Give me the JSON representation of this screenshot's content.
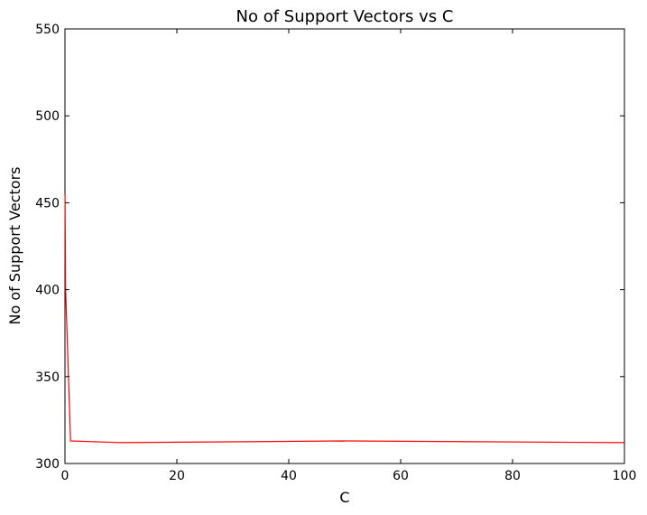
{
  "chart_data": {
    "type": "line",
    "title": "No of Support Vectors vs C",
    "xlabel": "C",
    "ylabel": "No of Support Vectors",
    "xlim": [
      0,
      100
    ],
    "ylim": [
      300,
      550
    ],
    "xticks": [
      0,
      20,
      40,
      60,
      80,
      100
    ],
    "yticks": [
      300,
      350,
      400,
      450,
      500,
      550
    ],
    "grid": false,
    "series": [
      {
        "color": "#ff0000",
        "x": [
          0.01,
          0.1,
          1,
          10,
          50,
          100
        ],
        "y": [
          455,
          402,
          313,
          312,
          313,
          312
        ]
      }
    ]
  }
}
